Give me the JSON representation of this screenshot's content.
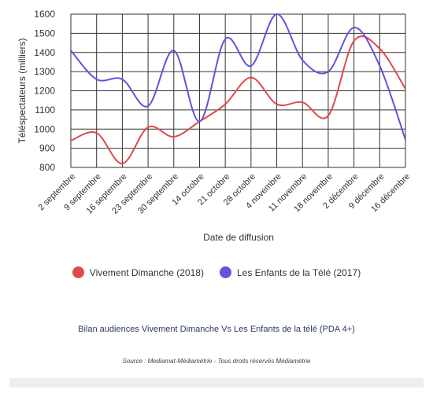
{
  "chart_data": {
    "type": "line",
    "categories": [
      "2 septembre",
      "9 septembre",
      "16 septembre",
      "23 septembre",
      "30 septembre",
      "14 octobre",
      "21 octobre",
      "28 octobre",
      "4 novembre",
      "11 novembre",
      "18 novembre",
      "2 décembre",
      "9 décembre",
      "16 décembre"
    ],
    "series": [
      {
        "name": "Vivement Dimanche (2018)",
        "color": "#dd4b4f",
        "values": [
          940,
          980,
          820,
          1010,
          960,
          1040,
          1130,
          1270,
          1130,
          1140,
          1070,
          1460,
          1420,
          1210
        ]
      },
      {
        "name": "Les Enfants de la Télé (2017)",
        "color": "#6a4fdb",
        "values": [
          1410,
          1260,
          1260,
          1120,
          1410,
          1040,
          1470,
          1330,
          1600,
          1360,
          1300,
          1530,
          1330,
          945
        ]
      }
    ],
    "xlabel": "Date de diffusion",
    "ylabel": "Téléspectateurs (milliers)",
    "ylim": [
      800,
      1600
    ],
    "yticks": [
      800,
      900,
      1000,
      1100,
      1200,
      1300,
      1400,
      1500,
      1600
    ],
    "grid": true,
    "legend_position": "bottom"
  },
  "caption": "Bilan audiences Vivement Dimanche Vs Les Enfants de la télé (PDA 4+)",
  "source": "Source : Mediamat-Médiamétrie - Tous droits réservés Médiamétrie"
}
